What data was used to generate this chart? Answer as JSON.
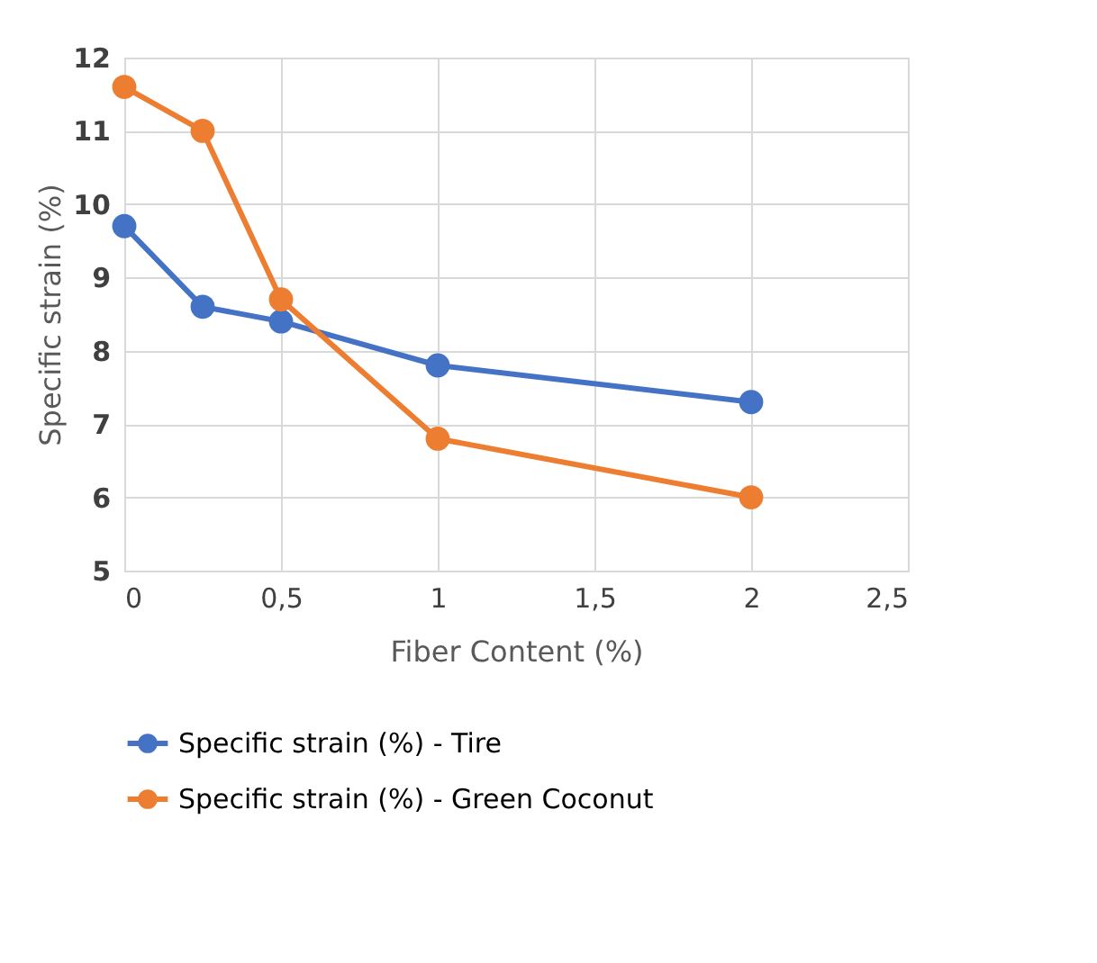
{
  "chart_data": {
    "type": "line",
    "xlabel": "Fiber Content (%)",
    "ylabel": "Specific strain (%)",
    "x": [
      0,
      0.25,
      0.5,
      1,
      2
    ],
    "series": [
      {
        "name": "Specific strain  (%) - Tire",
        "color": "#4472c4",
        "values": [
          9.7,
          8.6,
          8.4,
          7.8,
          7.3
        ]
      },
      {
        "name": "Specific strain  (%) - Green Coconut",
        "color": "#ed7d31",
        "values": [
          11.6,
          11.0,
          8.7,
          6.8,
          6.0
        ]
      }
    ],
    "xlim": [
      0,
      2.5
    ],
    "xticks": [
      0,
      {
        "value": 0.5,
        "label": "0,5"
      },
      1,
      {
        "value": 1.5,
        "label": "1,5"
      },
      2,
      {
        "value": 2.5,
        "label": "2,5"
      }
    ],
    "ylim": [
      5,
      12
    ],
    "yticks": [
      5,
      6,
      7,
      8,
      9,
      10,
      11,
      12
    ],
    "grid": true,
    "legend": "bottom",
    "marker": "circle",
    "line_style": "solid"
  }
}
